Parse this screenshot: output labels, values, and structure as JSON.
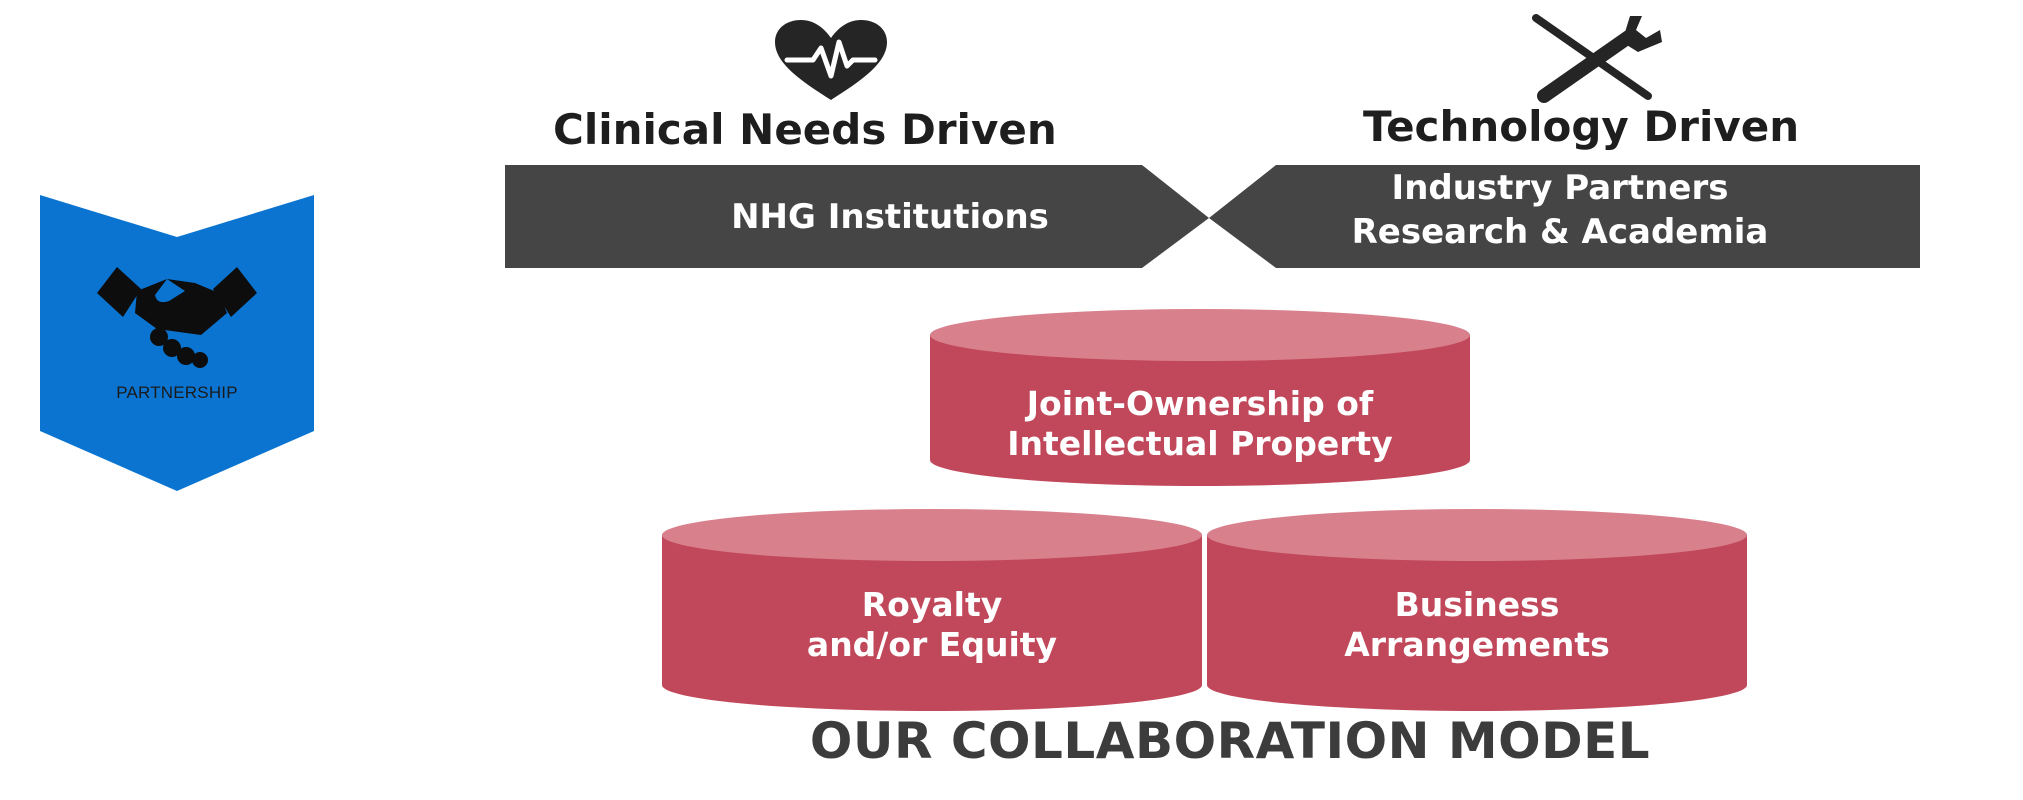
{
  "badge": {
    "label": "PARTNERSHIP",
    "icon": "handshake-icon",
    "color": "#0b74d1"
  },
  "clinical": {
    "heading": "Clinical Needs Driven",
    "icon": "heart-pulse-icon"
  },
  "technology": {
    "heading": "Technology Driven",
    "icon": "tools-icon"
  },
  "banner": {
    "left_text": "NHG Institutions",
    "right_lines": [
      "Industry Partners",
      "Research & Academia"
    ],
    "color": "#454545"
  },
  "model": {
    "top": [
      "Joint-Ownership of",
      "Intellectual Property"
    ],
    "left": [
      "Royalty",
      "and/or Equity"
    ],
    "right": [
      "Business",
      "Arrangements"
    ],
    "cylinder_color": "#c0485a",
    "title": "OUR COLLABORATION MODEL"
  }
}
